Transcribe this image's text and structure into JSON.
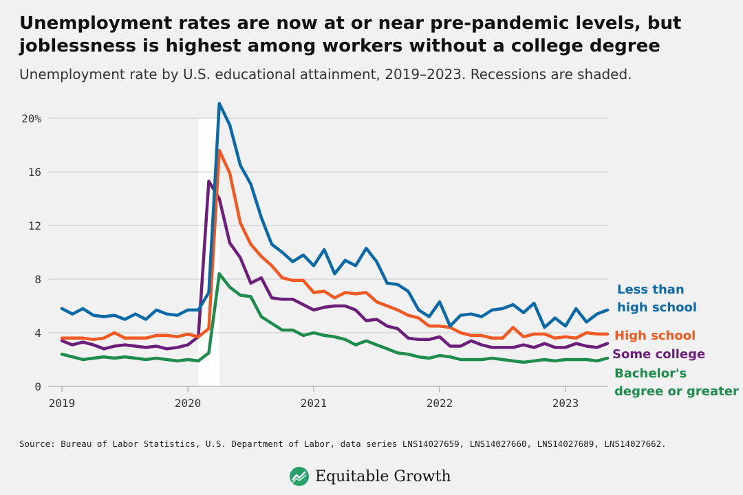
{
  "header": {
    "title_line1": "Unemployment rates are now at or near pre-pandemic levels, but",
    "title_line2": "joblessness is highest among workers without a college degree",
    "subtitle": "Unemployment rate by U.S. educational attainment, 2019–2023. Recessions are shaded."
  },
  "footer": {
    "source": "Source: Bureau of Labor Statistics, U.S. Department of Labor, data series LNS14027659, LNS14027660, LNS14027689, LNS14027662.",
    "brand": "Equitable Growth",
    "logo_icon": "chart-leaf-icon"
  },
  "colors": {
    "less_than_hs": "#0b6aa6",
    "high_school": "#f05a22",
    "some_college": "#6b1f7a",
    "bachelors": "#1f8c4e",
    "recession": "#ffffff",
    "background": "#f1f1f1"
  },
  "chart_data": {
    "type": "line",
    "ylim": [
      0,
      21
    ],
    "yticks": [
      0,
      4,
      8,
      12,
      16,
      20
    ],
    "ytick_labels": [
      "0",
      "4",
      "8",
      "12",
      "16",
      "20%"
    ],
    "x_start": "2019-01",
    "x_end": "2023-04",
    "xticks": [
      "2019",
      "2020",
      "2021",
      "2022",
      "2023"
    ],
    "grid": "horizontal",
    "legend": "right, labels at line ends",
    "recession": {
      "start": "2020-02",
      "end": "2020-04"
    },
    "series": [
      {
        "name_lines": [
          "Less than",
          "high school"
        ],
        "color": "#0b6aa6",
        "values": [
          5.8,
          5.4,
          5.8,
          5.3,
          5.2,
          5.3,
          5.0,
          5.4,
          5.0,
          5.7,
          5.4,
          5.3,
          5.7,
          5.7,
          7.0,
          21.1,
          19.5,
          16.5,
          15.1,
          12.6,
          10.6,
          10.0,
          9.3,
          9.8,
          9.0,
          10.2,
          8.4,
          9.4,
          9.0,
          10.3,
          9.3,
          7.7,
          7.6,
          7.1,
          5.7,
          5.2,
          6.3,
          4.5,
          5.3,
          5.4,
          5.2,
          5.7,
          5.8,
          6.1,
          5.5,
          6.2,
          4.4,
          5.1,
          4.5,
          5.8,
          4.8,
          5.4,
          5.7
        ]
      },
      {
        "name_lines": [
          "High school"
        ],
        "color": "#f05a22",
        "values": [
          3.6,
          3.6,
          3.6,
          3.5,
          3.6,
          4.0,
          3.6,
          3.6,
          3.6,
          3.8,
          3.8,
          3.7,
          3.9,
          3.7,
          4.3,
          17.6,
          15.9,
          12.2,
          10.6,
          9.7,
          9.0,
          8.1,
          7.9,
          7.9,
          7.0,
          7.1,
          6.6,
          7.0,
          6.9,
          7.0,
          6.3,
          6.0,
          5.7,
          5.3,
          5.1,
          4.5,
          4.5,
          4.4,
          4.0,
          3.8,
          3.8,
          3.6,
          3.6,
          4.4,
          3.7,
          3.9,
          3.9,
          3.6,
          3.7,
          3.6,
          4.0,
          3.9,
          3.9
        ]
      },
      {
        "name_lines": [
          "Some college"
        ],
        "color": "#6b1f7a",
        "values": [
          3.4,
          3.1,
          3.3,
          3.1,
          2.8,
          3.0,
          3.1,
          3.0,
          2.9,
          3.0,
          2.8,
          2.9,
          3.1,
          3.7,
          15.3,
          14.0,
          10.7,
          9.6,
          7.7,
          8.1,
          6.6,
          6.5,
          6.5,
          6.1,
          5.7,
          5.9,
          6.0,
          6.0,
          5.7,
          4.9,
          5.0,
          4.5,
          4.3,
          3.6,
          3.5,
          3.5,
          3.7,
          3.0,
          3.0,
          3.4,
          3.1,
          2.9,
          2.9,
          2.9,
          3.1,
          2.9,
          3.2,
          2.9,
          2.9,
          3.2,
          3.0,
          2.9,
          3.2
        ]
      },
      {
        "name_lines": [
          "Bachelor's",
          "degree or greater"
        ],
        "color": "#1f8c4e",
        "values": [
          2.4,
          2.2,
          2.0,
          2.1,
          2.2,
          2.1,
          2.2,
          2.1,
          2.0,
          2.1,
          2.0,
          1.9,
          2.0,
          1.9,
          2.5,
          8.4,
          7.4,
          6.8,
          6.7,
          5.2,
          4.7,
          4.2,
          4.2,
          3.8,
          4.0,
          3.8,
          3.7,
          3.5,
          3.1,
          3.4,
          3.1,
          2.8,
          2.5,
          2.4,
          2.2,
          2.1,
          2.3,
          2.2,
          2.0,
          2.0,
          2.0,
          2.1,
          2.0,
          1.9,
          1.8,
          1.9,
          2.0,
          1.9,
          2.0,
          2.0,
          2.0,
          1.9,
          2.1
        ]
      }
    ]
  }
}
